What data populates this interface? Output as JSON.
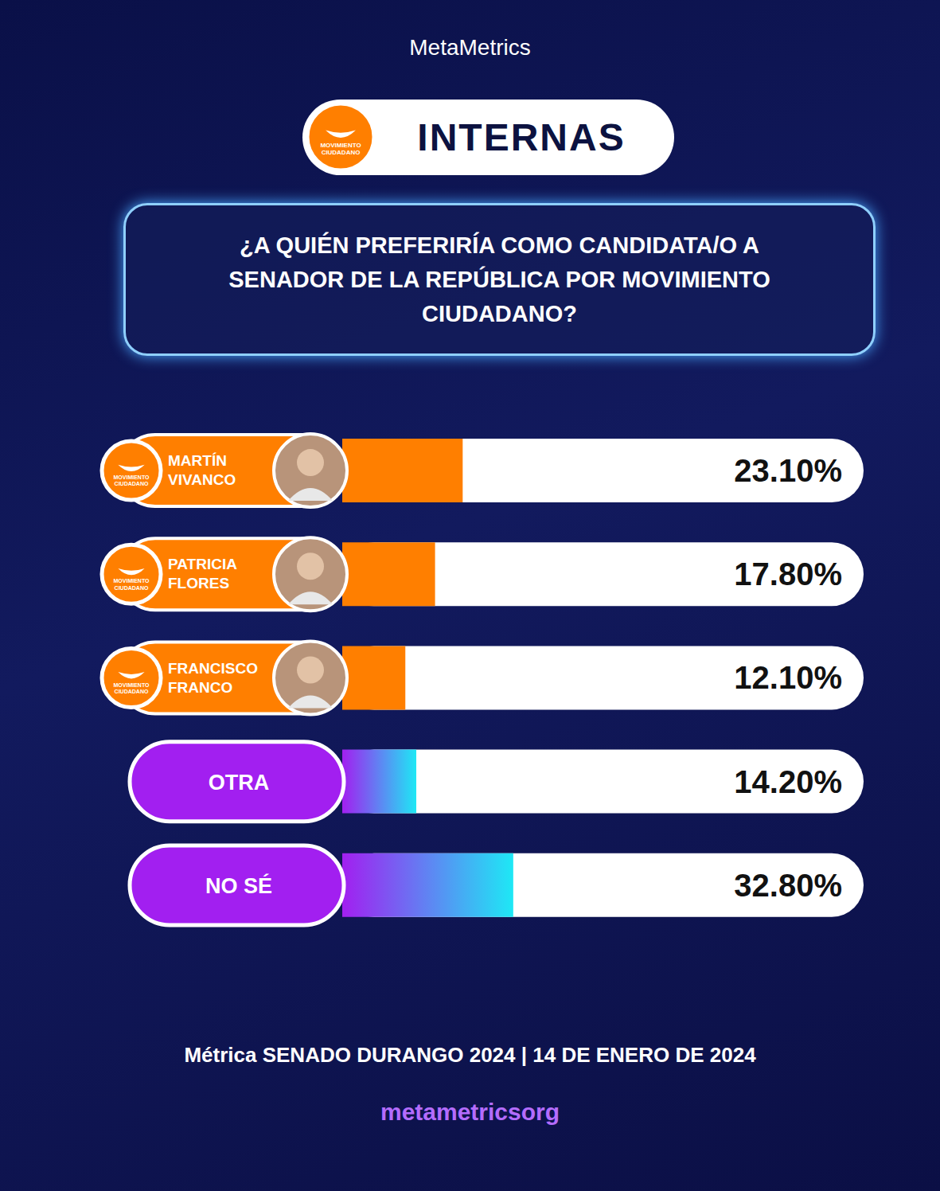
{
  "chart_data": {
    "type": "bar",
    "orientation": "horizontal",
    "title": "INTERNAS",
    "subtitle": "¿A QUIÉN PREFERIRÍA COMO CANDIDATA/O A SENADOR DE LA REPÚBLICA POR MOVIMIENTO CIUDADANO?",
    "categories": [
      "MARTÍN VIVANCO",
      "PATRICIA FLORES",
      "FRANCISCO FRANCO",
      "OTRA",
      "NO SÉ"
    ],
    "values": [
      23.1,
      17.8,
      12.1,
      14.2,
      32.8
    ],
    "value_labels": [
      "23.10%",
      "17.80%",
      "12.10%",
      "14.20%",
      "32.80%"
    ],
    "colors": [
      "#ff7f00",
      "#ff7f00",
      "#ff7f00",
      "#a21ff0",
      "#a21ff0"
    ],
    "xlim": [
      0,
      100
    ],
    "data_labels": true,
    "tick_labels": false,
    "annotations": [
      "MetaMetrics",
      "Métrica SENADO DURANGO 2024 | 14 DE ENERO DE 2024",
      "metametricsorg",
      "MOVIMIENTO CIUDADANO"
    ]
  }
}
